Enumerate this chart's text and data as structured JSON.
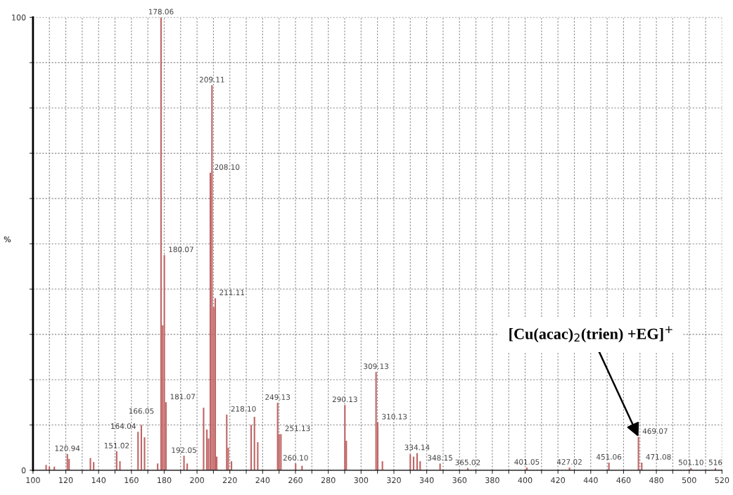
{
  "chart_data": {
    "type": "bar",
    "ylabel": "%",
    "x": [
      108,
      110,
      113,
      120.94,
      122,
      135,
      137,
      151.02,
      153,
      164.04,
      166.05,
      168,
      176,
      178.06,
      179.07,
      180.07,
      181.07,
      192.05,
      194,
      204,
      206,
      207,
      208.1,
      209.11,
      210.1,
      211.11,
      212,
      218.1,
      219,
      221,
      233,
      235,
      237,
      249.13,
      250,
      251.13,
      260.1,
      264,
      290.13,
      291,
      309.13,
      310.13,
      313,
      330,
      332,
      334.14,
      336,
      348.15,
      365.02,
      401.05,
      427.02,
      451.06,
      469.07,
      471.08,
      501.1,
      516
    ],
    "series": [
      {
        "color": "#c06464",
        "values": [
          1.2,
          0.8,
          0.8,
          3.6,
          2.5,
          2.7,
          1.8,
          4.2,
          2,
          8.5,
          10,
          7.3,
          1.5,
          100,
          32,
          47.5,
          15,
          3.2,
          1.5,
          13.8,
          9,
          7,
          65.7,
          85,
          36,
          38,
          3,
          12.3,
          5,
          2,
          10,
          11.8,
          6.2,
          14.9,
          8,
          8,
          1.5,
          1,
          14.4,
          6.5,
          21.7,
          10.6,
          2,
          3.5,
          3,
          3.8,
          2,
          1.5,
          0.5,
          0.6,
          0.6,
          1.7,
          7.4,
          1.7,
          0.5,
          0.5
        ]
      }
    ],
    "xlim": [
      100,
      520
    ],
    "ylim": [
      0,
      100
    ],
    "xticks": [
      100,
      {
        "value": 110,
        "label": null
      },
      120,
      {
        "value": 130,
        "label": null
      },
      140,
      {
        "value": 150,
        "label": null
      },
      160,
      {
        "value": 170,
        "label": null
      },
      180,
      {
        "value": 190,
        "label": null
      },
      200,
      {
        "value": 210,
        "label": null
      },
      220,
      {
        "value": 230,
        "label": null
      },
      240,
      {
        "value": 250,
        "label": null
      },
      260,
      {
        "value": 270,
        "label": null
      },
      280,
      {
        "value": 290,
        "label": null
      },
      300,
      {
        "value": 310,
        "label": null
      },
      320,
      {
        "value": 330,
        "label": null
      },
      340,
      {
        "value": 350,
        "label": null
      },
      360,
      {
        "value": 370,
        "label": null
      },
      380,
      {
        "value": 390,
        "label": null
      },
      400,
      {
        "value": 410,
        "label": null
      },
      420,
      {
        "value": 430,
        "label": null
      },
      440,
      {
        "value": 450,
        "label": null
      },
      460,
      {
        "value": 470,
        "label": null
      },
      480,
      {
        "value": 490,
        "label": null
      },
      500,
      {
        "value": 510,
        "label": null
      },
      520
    ],
    "yticks": [
      0,
      {
        "value": 10,
        "label": null
      },
      {
        "value": 20,
        "label": null
      },
      {
        "value": 30,
        "label": null
      },
      {
        "value": 40,
        "label": null
      },
      {
        "value": 50,
        "label": null
      },
      {
        "value": 60,
        "label": null
      },
      {
        "value": 70,
        "label": null
      },
      {
        "value": 80,
        "label": null
      },
      {
        "value": 90,
        "label": null
      },
      100
    ],
    "grid": true,
    "annotations": [
      {
        "text": "120.94",
        "x": 120.94,
        "y": 3.6
      },
      {
        "text": "151.02",
        "x": 151.02,
        "y": 4.2
      },
      {
        "text": "164.04",
        "x": 164.04,
        "y": 8.5
      },
      {
        "text": "166.05",
        "x": 166.05,
        "y": 10
      },
      {
        "text": "178.06",
        "x": 178.06,
        "y": 100
      },
      {
        "text": "180.07",
        "x": 180.07,
        "y": 47.5
      },
      {
        "text": "181.07",
        "x": 181.07,
        "y": 15
      },
      {
        "text": "192.05",
        "x": 192.05,
        "y": 3.2
      },
      {
        "text": "208.10",
        "x": 208.1,
        "y": 65.7
      },
      {
        "text": "209.11",
        "x": 209.11,
        "y": 85
      },
      {
        "text": "211.11",
        "x": 211.11,
        "y": 38
      },
      {
        "text": "218.10",
        "x": 218.1,
        "y": 12.3
      },
      {
        "text": "249.13",
        "x": 249.13,
        "y": 14.9
      },
      {
        "text": "251.13",
        "x": 251.13,
        "y": 8
      },
      {
        "text": "260.10",
        "x": 260.1,
        "y": 1.5
      },
      {
        "text": "290.13",
        "x": 290.13,
        "y": 14.4
      },
      {
        "text": "309.13",
        "x": 309.13,
        "y": 21.7
      },
      {
        "text": "310.13",
        "x": 310.13,
        "y": 10.6
      },
      {
        "text": "334.14",
        "x": 334.14,
        "y": 3.8
      },
      {
        "text": "348.15",
        "x": 348.15,
        "y": 1.5
      },
      {
        "text": "365.02",
        "x": 365.02,
        "y": 0.5
      },
      {
        "text": "401.05",
        "x": 401.05,
        "y": 0.6
      },
      {
        "text": "427.02",
        "x": 427.02,
        "y": 0.6
      },
      {
        "text": "451.06",
        "x": 451.06,
        "y": 1.7
      },
      {
        "text": "469.07",
        "x": 469.07,
        "y": 7.4
      },
      {
        "text": "471.08",
        "x": 471.08,
        "y": 1.7
      },
      {
        "text": "501.10",
        "x": 501.1,
        "y": 0.5
      },
      {
        "text": "516",
        "x": 516,
        "y": 0.5
      },
      {
        "text": "[Cu(acac)$_{2}$(trien) +EG]$^{+}$",
        "x": 469.07,
        "y": 7.4
      }
    ]
  }
}
